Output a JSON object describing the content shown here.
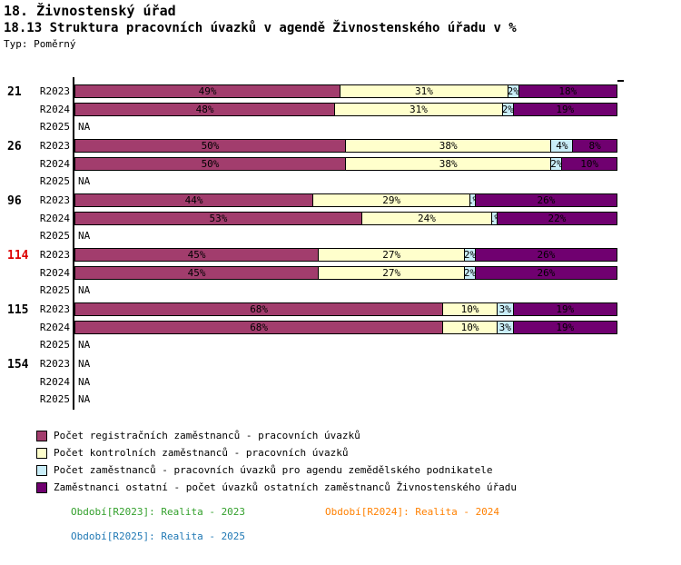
{
  "title1": "18. Živnostenský úřad",
  "title2": "18.13 Struktura pracovních úvazků v agendě Živnostenského úřadu v %",
  "type_label": "Typ: Poměrný",
  "na_label": "NA",
  "colors": {
    "series": [
      "#A23D6D",
      "#FFFFCC",
      "#C9EDF8",
      "#700070"
    ],
    "group_label_default": "#000000",
    "group_label_highlight": "#DD0000",
    "bar_border": "#000000",
    "period_2023": "#33A02C",
    "period_2024": "#FF8000",
    "period_2025": "#1F78B4"
  },
  "chart_data": {
    "type": "bar",
    "orientation": "horizontal",
    "stacked": true,
    "unit": "%",
    "xlim": [
      0,
      100
    ],
    "grid": false,
    "series_names": [
      "Počet registračních zaměstnanců - pracovních úvazků",
      "Počet kontrolních zaměstnanců - pracovních úvazků",
      "Počet zaměstnanců - pracovních úvazků pro agendu zemědělského podnikatele",
      "Zaměstnanci ostatní - počet úvazků ostatních zaměstnanců Živnostenského úřadu"
    ],
    "row_labels": [
      "R2023",
      "R2024",
      "R2025"
    ],
    "groups": [
      {
        "label": "21",
        "highlight": false,
        "rows": [
          {
            "label": "R2023",
            "values": [
              49,
              31,
              2,
              18
            ]
          },
          {
            "label": "R2024",
            "values": [
              48,
              31,
              2,
              19
            ]
          },
          {
            "label": "R2025",
            "values": null
          }
        ]
      },
      {
        "label": "26",
        "highlight": false,
        "rows": [
          {
            "label": "R2023",
            "values": [
              50,
              38,
              4,
              8
            ]
          },
          {
            "label": "R2024",
            "values": [
              50,
              38,
              2,
              10
            ]
          },
          {
            "label": "R2025",
            "values": null
          }
        ]
      },
      {
        "label": "96",
        "highlight": false,
        "rows": [
          {
            "label": "R2023",
            "values": [
              44,
              29,
              1,
              26
            ]
          },
          {
            "label": "R2024",
            "values": [
              53,
              24,
              1,
              22
            ]
          },
          {
            "label": "R2025",
            "values": null
          }
        ]
      },
      {
        "label": "114",
        "highlight": true,
        "rows": [
          {
            "label": "R2023",
            "values": [
              45,
              27,
              2,
              26
            ]
          },
          {
            "label": "R2024",
            "values": [
              45,
              27,
              2,
              26
            ]
          },
          {
            "label": "R2025",
            "values": null
          }
        ]
      },
      {
        "label": "115",
        "highlight": false,
        "rows": [
          {
            "label": "R2023",
            "values": [
              68,
              10,
              3,
              19
            ]
          },
          {
            "label": "R2024",
            "values": [
              68,
              10,
              3,
              19
            ]
          },
          {
            "label": "R2025",
            "values": null
          }
        ]
      },
      {
        "label": "154",
        "highlight": false,
        "rows": [
          {
            "label": "R2023",
            "values": null
          },
          {
            "label": "R2024",
            "values": null
          },
          {
            "label": "R2025",
            "values": null
          }
        ]
      }
    ]
  },
  "legend": [
    {
      "label": "Počet registračních zaměstnanců - pracovních úvazků",
      "color": "#A23D6D"
    },
    {
      "label": "Počet kontrolních zaměstnanců - pracovních úvazků",
      "color": "#FFFFCC"
    },
    {
      "label": "Počet zaměstnanců - pracovních úvazků pro agendu zemědělského podnikatele",
      "color": "#C9EDF8"
    },
    {
      "label": "Zaměstnanci ostatní - počet úvazků ostatních zaměstnanců Živnostenského úřadu",
      "color": "#700070"
    }
  ],
  "periods": [
    {
      "label": "Období[R2023]:",
      "value": "Realita - 2023",
      "color": "#33A02C"
    },
    {
      "label": "Období[R2024]:",
      "value": "Realita - 2024",
      "color": "#FF8000"
    },
    {
      "label": "Období[R2025]:",
      "value": "Realita - 2025",
      "color": "#1F78B4"
    }
  ]
}
